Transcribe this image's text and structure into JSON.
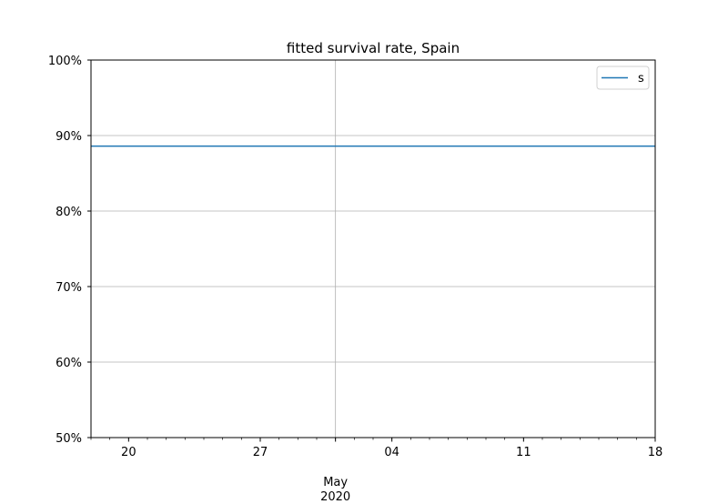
{
  "chart_data": {
    "type": "line",
    "title": "fitted survival rate, Spain",
    "xlabel": "",
    "ylabel": "",
    "x_range": [
      "2020-04-18",
      "2020-05-18"
    ],
    "x_major_ticks": [
      {
        "date": "2020-04-20",
        "label": "20"
      },
      {
        "date": "2020-04-27",
        "label": "27"
      },
      {
        "date": "2020-05-01",
        "label": "May\n2020"
      },
      {
        "date": "2020-05-04",
        "label": "04"
      },
      {
        "date": "2020-05-11",
        "label": "11"
      },
      {
        "date": "2020-05-18",
        "label": "18"
      }
    ],
    "ylim": [
      0.5,
      1.0
    ],
    "y_ticks": [
      {
        "value": 0.5,
        "label": "50%"
      },
      {
        "value": 0.6,
        "label": "60%"
      },
      {
        "value": 0.7,
        "label": "70%"
      },
      {
        "value": 0.8,
        "label": "80%"
      },
      {
        "value": 0.9,
        "label": "90%"
      },
      {
        "value": 1.0,
        "label": "100%"
      }
    ],
    "grid": true,
    "legend_position": "top-right",
    "series": [
      {
        "name": "s",
        "color": "#1f77b4",
        "x": [
          "2020-04-18",
          "2020-05-18"
        ],
        "values": [
          0.886,
          0.886
        ]
      }
    ]
  }
}
